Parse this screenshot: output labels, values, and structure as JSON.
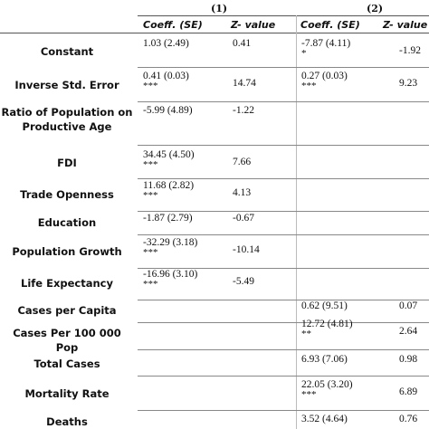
{
  "models": [
    "(1)",
    "(2)"
  ],
  "col_headers": [
    "Coeff. (SE)",
    "Z- value",
    "Coeff. (SE)",
    "Z- value"
  ],
  "rows": [
    {
      "label": "Constant",
      "m1_coef": "1.03 (2.49)",
      "m1_stars": "",
      "m1_z": "0.41",
      "m2_coef": "-7.87 (4.11)",
      "m2_stars": "*",
      "m2_z": "-1.92"
    },
    {
      "label": "Inverse Std. Error",
      "m1_coef": "0.41 (0.03)",
      "m1_stars": "***",
      "m1_z": "14.74",
      "m2_coef": "0.27 (0.03)",
      "m2_stars": "***",
      "m2_z": "9.23"
    },
    {
      "label": "Ratio of Population on Productive Age",
      "m1_coef": "-5.99 (4.89)",
      "m1_stars": "",
      "m1_z": "-1.22",
      "m2_coef": "",
      "m2_stars": "",
      "m2_z": ""
    },
    {
      "label": "FDI",
      "m1_coef": "34.45 (4.50)",
      "m1_stars": "***",
      "m1_z": "7.66",
      "m2_coef": "",
      "m2_stars": "",
      "m2_z": ""
    },
    {
      "label": "Trade Openness",
      "m1_coef": "11.68 (2.82)",
      "m1_stars": "***",
      "m1_z": "4.13",
      "m2_coef": "",
      "m2_stars": "",
      "m2_z": ""
    },
    {
      "label": "Education",
      "m1_coef": "-1.87 (2.79)",
      "m1_stars": "",
      "m1_z": "-0.67",
      "m2_coef": "",
      "m2_stars": "",
      "m2_z": ""
    },
    {
      "label": "Population Growth",
      "m1_coef": "-32.29 (3.18)",
      "m1_stars": "***",
      "m1_z": "-10.14",
      "m2_coef": "",
      "m2_stars": "",
      "m2_z": ""
    },
    {
      "label": "Life Expectancy",
      "m1_coef": "-16.96 (3.10)",
      "m1_stars": "***",
      "m1_z": "-5.49",
      "m2_coef": "",
      "m2_stars": "",
      "m2_z": ""
    },
    {
      "label": "Cases per Capita",
      "m1_coef": "",
      "m1_stars": "",
      "m1_z": "",
      "m2_coef": "0.62 (9.51)",
      "m2_stars": "",
      "m2_z": "0.07"
    },
    {
      "label": "Cases Per 100 000 Pop",
      "m1_coef": "",
      "m1_stars": "",
      "m1_z": "",
      "m2_coef": "12.72 (4.81)",
      "m2_stars": "**",
      "m2_z": "2.64"
    },
    {
      "label": "Total Cases",
      "m1_coef": "",
      "m1_stars": "",
      "m1_z": "",
      "m2_coef": "6.93 (7.06)",
      "m2_stars": "",
      "m2_z": "0.98"
    },
    {
      "label": "Mortality Rate",
      "m1_coef": "",
      "m1_stars": "",
      "m1_z": "",
      "m2_coef": "22.05 (3.20)",
      "m2_stars": "***",
      "m2_z": "6.89"
    },
    {
      "label": "Deaths",
      "m1_coef": "",
      "m1_stars": "",
      "m1_z": "",
      "m2_coef": "3.52 (4.64)",
      "m2_stars": "",
      "m2_z": "0.76"
    }
  ]
}
